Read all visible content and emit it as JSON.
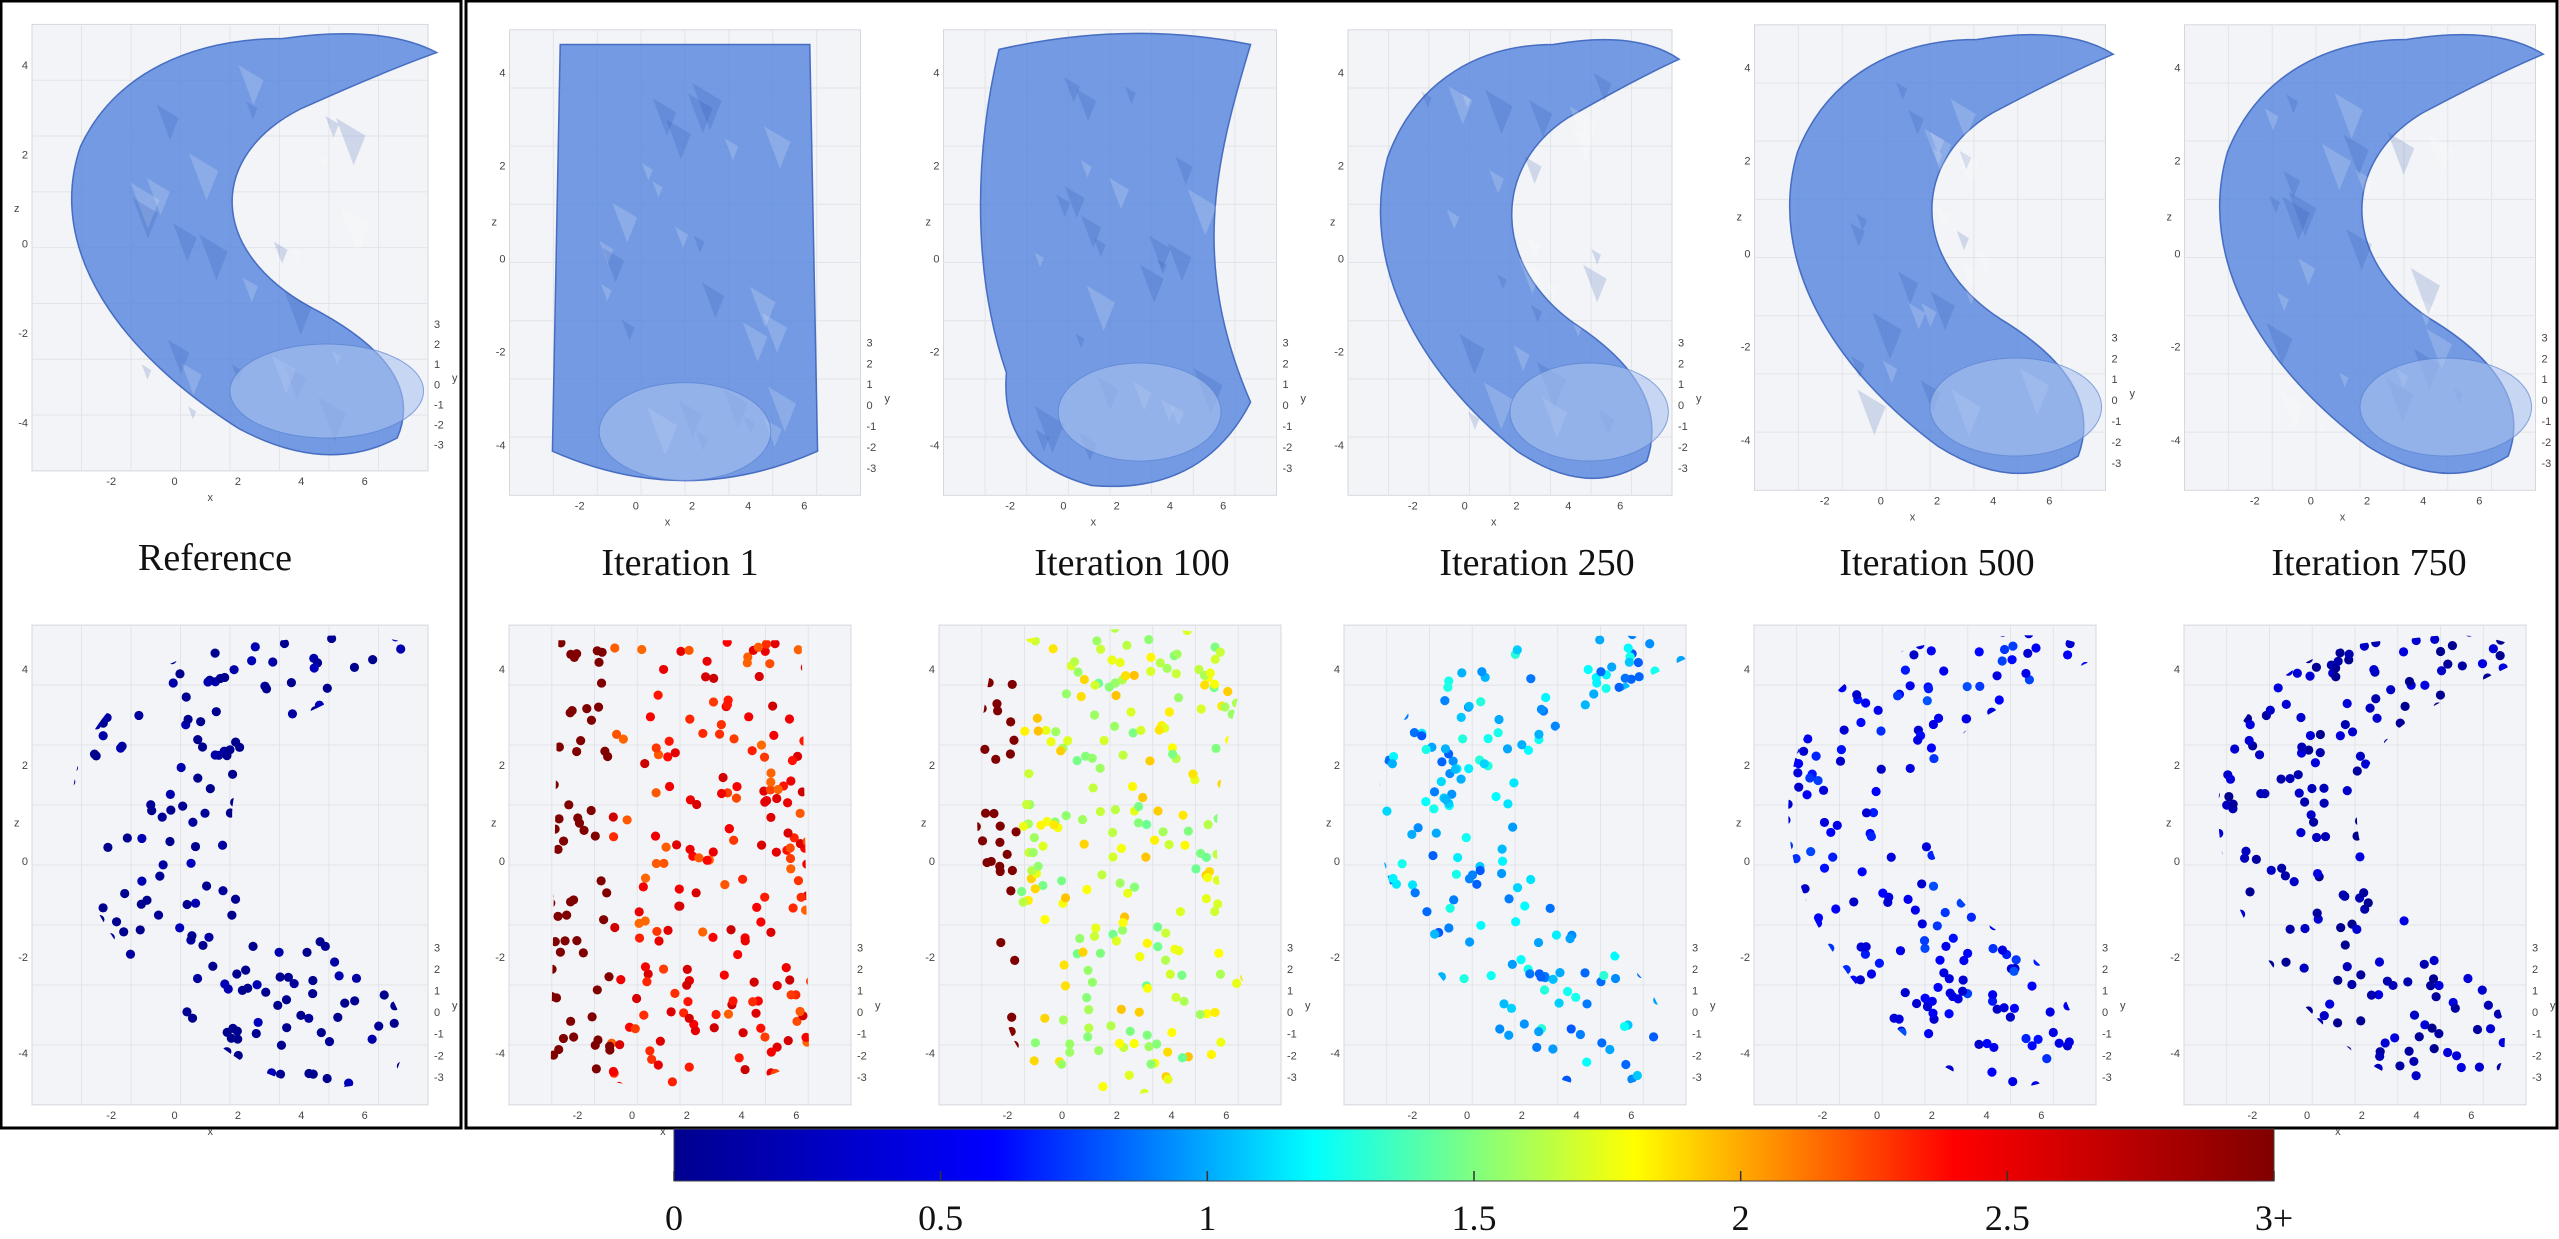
{
  "panels": [
    {
      "key": "reference",
      "label": "Reference",
      "shape": "banana",
      "meshRgb": [
        92,
        138,
        222
      ]
    },
    {
      "key": "iter1",
      "label": "Iteration 1",
      "shape": "cylinder",
      "meshRgb": [
        92,
        138,
        222
      ]
    },
    {
      "key": "iter100",
      "label": "Iteration 100",
      "shape": "bent-cylinder",
      "meshRgb": [
        92,
        138,
        222
      ]
    },
    {
      "key": "iter250",
      "label": "Iteration 250",
      "shape": "banana",
      "meshRgb": [
        92,
        138,
        222
      ]
    },
    {
      "key": "iter500",
      "label": "Iteration 500",
      "shape": "banana",
      "meshRgb": [
        92,
        138,
        222
      ]
    },
    {
      "key": "iter750",
      "label": "Iteration 750",
      "shape": "banana",
      "meshRgb": [
        92,
        138,
        222
      ]
    }
  ],
  "colorbar": {
    "stops": [
      "#00008f",
      "#0000ff",
      "#00ffff",
      "#ffff00",
      "#ff0000",
      "#800000"
    ],
    "ticks": [
      {
        "value": 0,
        "label": "0"
      },
      {
        "value": 0.5,
        "label": "0.5"
      },
      {
        "value": 1,
        "label": "1"
      },
      {
        "value": 1.5,
        "label": "1.5"
      },
      {
        "value": 2,
        "label": "2"
      },
      {
        "value": 2.5,
        "label": "2.5"
      },
      {
        "value": 3,
        "label": "3+"
      }
    ],
    "range": [
      0,
      3
    ]
  },
  "axes": {
    "x": "x",
    "y": "y",
    "z": "z",
    "zTicks": [
      "4",
      "2",
      "0",
      "-2",
      "-4"
    ],
    "yTicks": [
      "3",
      "2",
      "1",
      "0",
      "-1",
      "-2",
      "-3"
    ],
    "xTicks": [
      "-2",
      "0",
      "2",
      "4",
      "6"
    ]
  },
  "pointErrorByPanel": {
    "reference": 0.0,
    "iter1": 2.4,
    "iter100": 1.7,
    "iter250": 1.05,
    "iter500": 0.55,
    "iter750": 0.2
  }
}
